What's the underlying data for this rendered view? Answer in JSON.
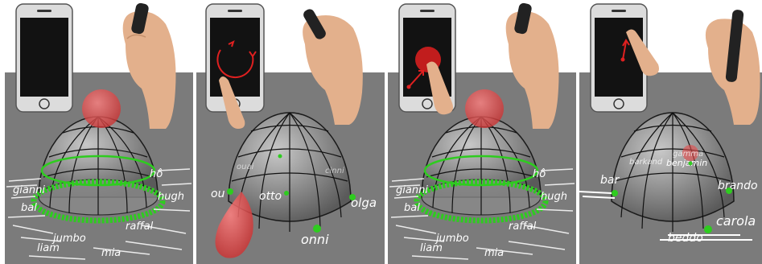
{
  "panels": [
    {
      "name": "panel-1",
      "words": [
        "hô",
        "gianni",
        "bal",
        "raffal",
        "jumbo",
        "hugh",
        "liam",
        "mia"
      ]
    },
    {
      "name": "panel-2",
      "words": [
        "ou",
        "otto",
        "olga",
        "onni",
        "ouai",
        "cinni"
      ]
    },
    {
      "name": "panel-3",
      "words": [
        "hô",
        "gianni",
        "bal",
        "raffal",
        "jumbo",
        "hugh",
        "liam",
        "mia"
      ]
    },
    {
      "name": "panel-4",
      "words": [
        "bar",
        "benjamin",
        "brando",
        "carola",
        "barkand",
        "gamma",
        "beddo"
      ]
    }
  ],
  "colors": {
    "floor": "#7b7b7b",
    "sphere": "#9c9c9c",
    "red_ball": "#e64a4a",
    "green": "#2ecc1f",
    "phone": "#121212",
    "hand": "#e3b08c",
    "gesture": "#e02020"
  }
}
